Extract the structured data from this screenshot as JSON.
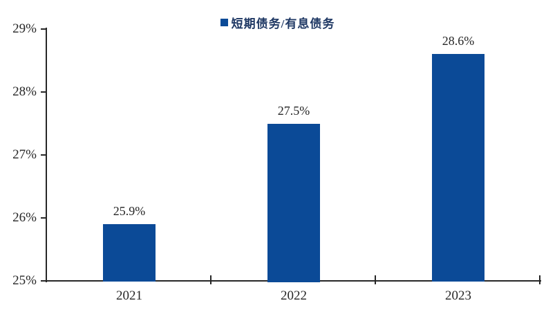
{
  "chart_data": {
    "type": "bar",
    "legend": "短期债务/有息债务",
    "categories": [
      "2021",
      "2022",
      "2023"
    ],
    "values": [
      25.9,
      27.5,
      28.6
    ],
    "value_labels": [
      "25.9%",
      "27.5%",
      "28.6%"
    ],
    "ylim": [
      25,
      29
    ],
    "yticks": [
      25,
      26,
      27,
      28,
      29
    ],
    "ytick_labels": [
      "25%",
      "26%",
      "27%",
      "28%",
      "29%"
    ],
    "title": "",
    "xlabel": "",
    "ylabel": "",
    "grid": false,
    "legend_position": "top-center",
    "bar_color": "#0B4A97",
    "legend_text_color": "#1F3864",
    "axis_color": "#262626",
    "label_color": "#262626",
    "background_color": "#FFFFFF"
  }
}
